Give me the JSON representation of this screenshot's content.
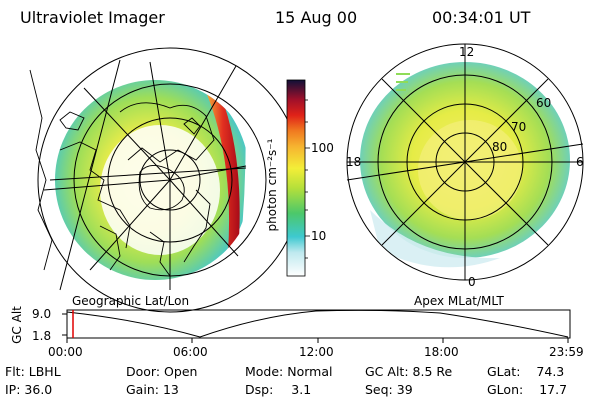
{
  "header": {
    "instrument": "Ultraviolet Imager",
    "date": "15 Aug 00",
    "time": "00:34:01 UT"
  },
  "colorbar": {
    "unit_label": "photon cm⁻²s⁻¹",
    "ticks": [
      "100",
      "10"
    ],
    "scale": "log"
  },
  "left_panel": {
    "caption": "Geographic Lat/Lon"
  },
  "right_panel": {
    "caption": "Apex MLat/MLT",
    "mlt_labels": [
      "12",
      "18",
      "6",
      "0"
    ],
    "mlat_labels": [
      "60",
      "70",
      "80"
    ]
  },
  "altitude_plot": {
    "ylabel": "GC Alt",
    "yticks": [
      "9.0",
      "1.8"
    ],
    "xticks": [
      "00:00",
      "06:00",
      "12:00",
      "18:00",
      "23:59"
    ],
    "current_marker_time": "00:34",
    "marker_color": "#e00000"
  },
  "status": {
    "filter": {
      "label": "Flt:",
      "value": "LBHL"
    },
    "ip": {
      "label": "IP:",
      "value": "36.0"
    },
    "door": {
      "label": "Door:",
      "value": "Open"
    },
    "gain": {
      "label": "Gain:",
      "value": "13"
    },
    "mode": {
      "label": "Mode:",
      "value": "Normal"
    },
    "dsp": {
      "label": "Dsp:",
      "value": "3.1"
    },
    "gc_alt": {
      "label": "GC Alt:",
      "value": "8.5 Re"
    },
    "seq": {
      "label": "Seq:",
      "value": "39"
    },
    "glat": {
      "label": "GLat:",
      "value": "74.3"
    },
    "glon": {
      "label": "GLon:",
      "value": "17.7"
    }
  }
}
